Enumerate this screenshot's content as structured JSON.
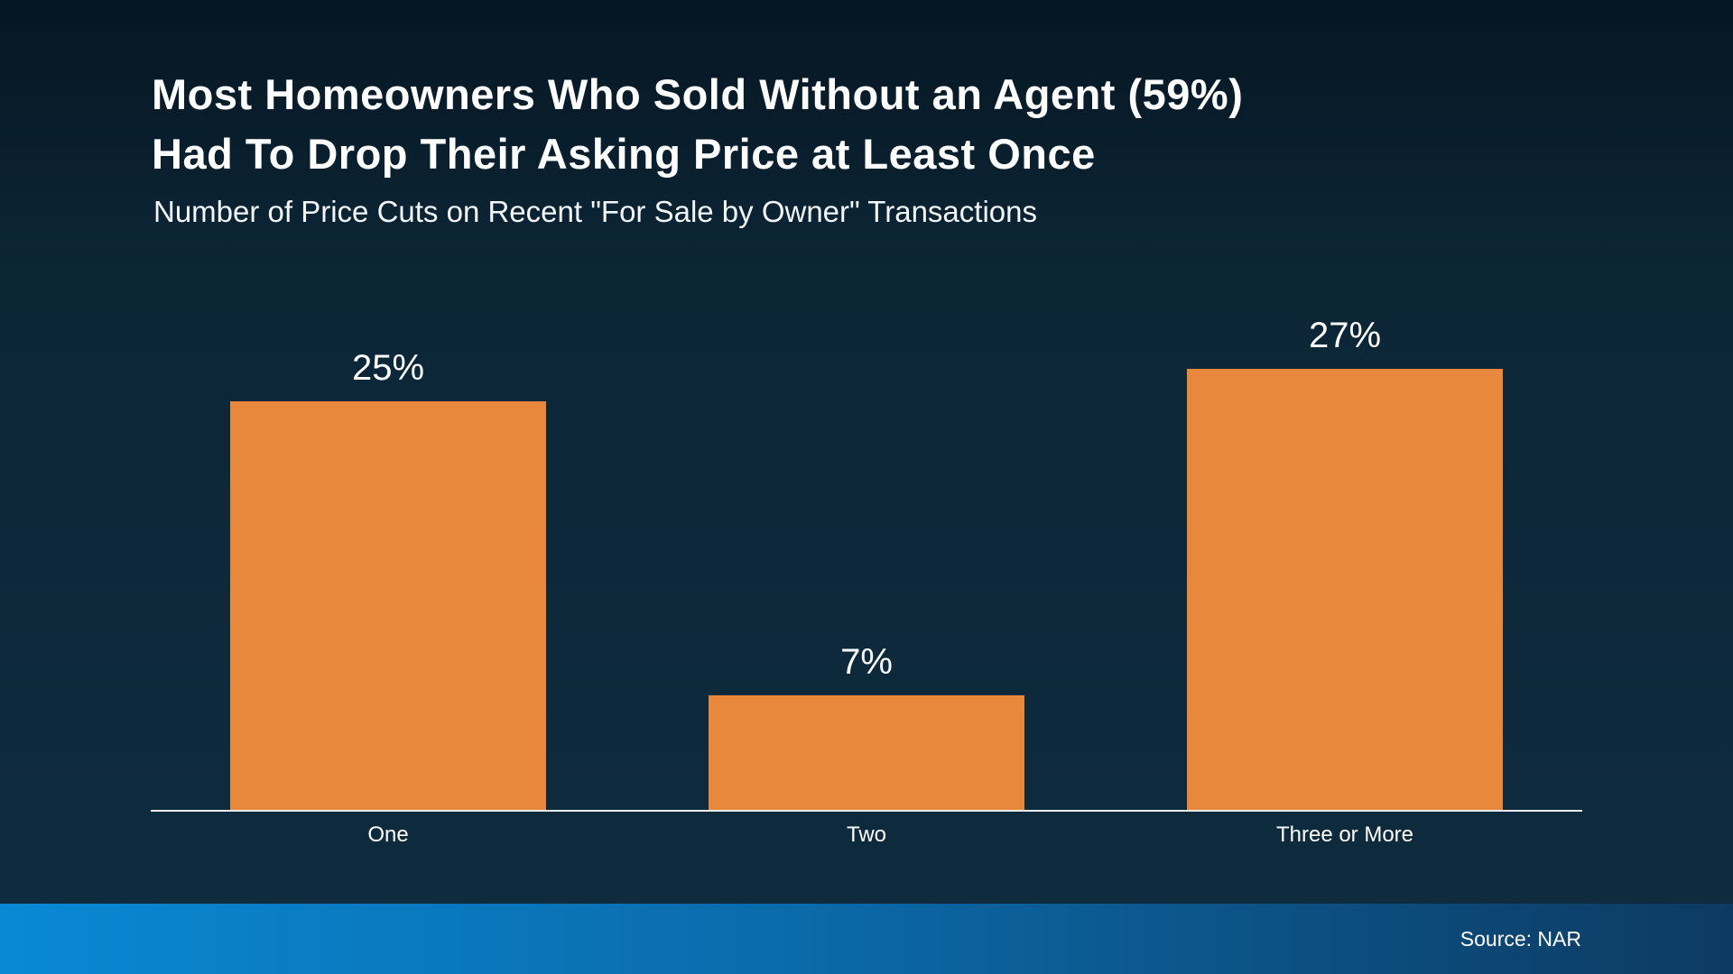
{
  "title_lines": {
    "line1": "Most Homeowners Who Sold Without an Agent (59%)",
    "line2": "Had To Drop Their Asking Price at Least Once"
  },
  "subtitle": "Number of Price Cuts on Recent \"For Sale by Owner\" Transactions",
  "source": "Source: NAR",
  "colors": {
    "bar": "#E8883C",
    "axis": "#E9EEF2",
    "background_top": "#061623",
    "background_bottom": "#0E2C3F",
    "footer_gradient_left": "#0989D4",
    "footer_gradient_mid": "#0B6BAB",
    "footer_gradient_right": "#0D3A61",
    "text": "#FFFFFF"
  },
  "chart_data": {
    "type": "bar",
    "title": "Most Homeowners Who Sold Without an Agent (59%) Had To Drop Their Asking Price at Least Once",
    "subtitle": "Number of Price Cuts on Recent \"For Sale by Owner\" Transactions",
    "categories": [
      "One",
      "Two",
      "Three or More"
    ],
    "values": [
      25,
      7,
      27
    ],
    "value_labels": [
      "25%",
      "7%",
      "27%"
    ],
    "ylim": [
      0,
      30
    ],
    "xlabel": "",
    "ylabel": "",
    "grid": false,
    "legend": false,
    "source": "Source: NAR"
  }
}
